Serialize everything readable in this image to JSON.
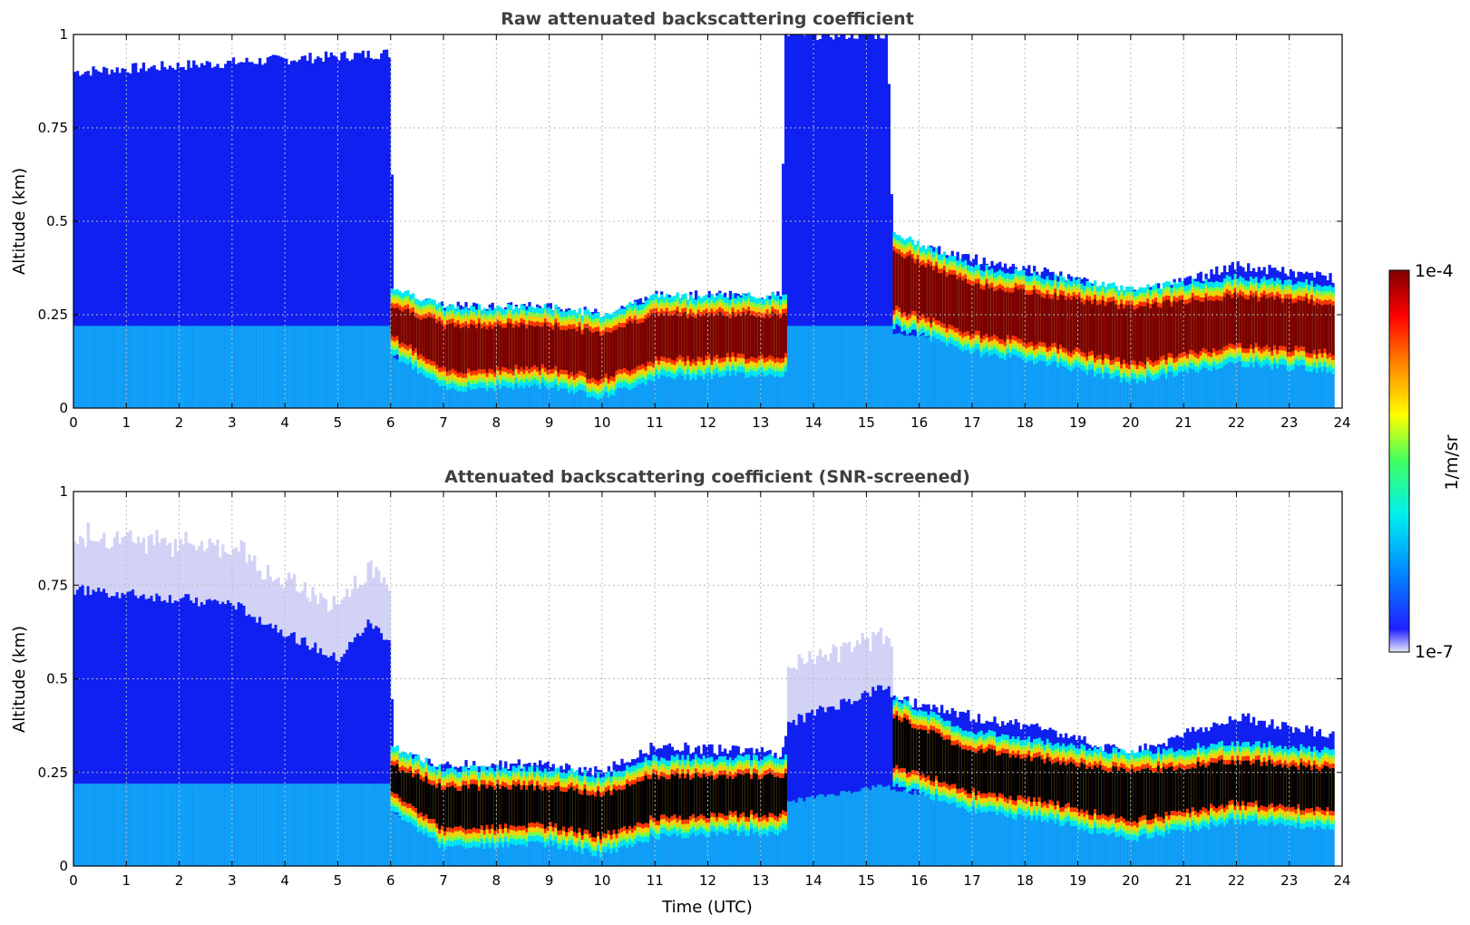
{
  "chart_data": [
    {
      "type": "heatmap",
      "title": "Raw attenuated backscattering coefficient",
      "xlabel": "",
      "ylabel": "Altitude (km)",
      "xlim": [
        0,
        24
      ],
      "ylim": [
        0,
        1
      ],
      "x_ticks": [
        "0",
        "1",
        "2",
        "3",
        "4",
        "5",
        "6",
        "7",
        "8",
        "9",
        "10",
        "11",
        "12",
        "13",
        "14",
        "15",
        "16",
        "17",
        "18",
        "19",
        "20",
        "21",
        "22",
        "23",
        "24"
      ],
      "y_ticks": [
        "0",
        "0.25",
        "0.5",
        "0.75",
        "1"
      ],
      "y_tick_values": [
        0,
        0.25,
        0.5,
        0.75,
        1
      ],
      "grid": true,
      "screened": false,
      "layer_top_km": [
        {
          "t": 0,
          "v": 0.9
        },
        {
          "t": 6,
          "v": 0.95
        },
        {
          "t": 6.05,
          "v": 0.3
        },
        {
          "t": 7,
          "v": 0.27
        },
        {
          "t": 9,
          "v": 0.27
        },
        {
          "t": 10,
          "v": 0.25
        },
        {
          "t": 11,
          "v": 0.3
        },
        {
          "t": 13.4,
          "v": 0.3
        },
        {
          "t": 13.45,
          "v": 1.0
        },
        {
          "t": 15.4,
          "v": 1.0
        },
        {
          "t": 15.5,
          "v": 0.45
        },
        {
          "t": 17,
          "v": 0.4
        },
        {
          "t": 18.5,
          "v": 0.36
        },
        {
          "t": 20,
          "v": 0.3
        },
        {
          "t": 22,
          "v": 0.38
        },
        {
          "t": 23.8,
          "v": 0.35
        }
      ],
      "core_km": [
        {
          "t": 6.0,
          "top": 0.28,
          "bottom": 0.2
        },
        {
          "t": 7,
          "top": 0.22,
          "bottom": 0.1
        },
        {
          "t": 9,
          "top": 0.22,
          "bottom": 0.11
        },
        {
          "t": 10,
          "top": 0.2,
          "bottom": 0.08
        },
        {
          "t": 11,
          "top": 0.25,
          "bottom": 0.13
        },
        {
          "t": 12.5,
          "top": 0.25,
          "bottom": 0.14
        },
        {
          "t": 13.5,
          "top": 0.25,
          "bottom": 0.14
        },
        {
          "t": 15.5,
          "top": 0.42,
          "bottom": 0.27
        },
        {
          "t": 17,
          "top": 0.33,
          "bottom": 0.2
        },
        {
          "t": 18.5,
          "top": 0.3,
          "bottom": 0.17
        },
        {
          "t": 20,
          "top": 0.27,
          "bottom": 0.12
        },
        {
          "t": 22,
          "top": 0.3,
          "bottom": 0.17
        },
        {
          "t": 23.8,
          "top": 0.28,
          "bottom": 0.15
        }
      ]
    },
    {
      "type": "heatmap",
      "title": "Attenuated backscattering coefficient (SNR-screened)",
      "xlabel": "Time (UTC)",
      "ylabel": "Altitude (km)",
      "xlim": [
        0,
        24
      ],
      "ylim": [
        0,
        1
      ],
      "x_ticks": [
        "0",
        "1",
        "2",
        "3",
        "4",
        "5",
        "6",
        "7",
        "8",
        "9",
        "10",
        "11",
        "12",
        "13",
        "14",
        "15",
        "16",
        "17",
        "18",
        "19",
        "20",
        "21",
        "22",
        "23",
        "24"
      ],
      "y_ticks": [
        "0",
        "0.25",
        "0.5",
        "0.75",
        "1"
      ],
      "y_tick_values": [
        0,
        0.25,
        0.5,
        0.75,
        1
      ],
      "grid": true,
      "screened": true,
      "layer_top_km": [
        {
          "t": 0,
          "v": 0.74
        },
        {
          "t": 3,
          "v": 0.7
        },
        {
          "t": 5,
          "v": 0.55
        },
        {
          "t": 5.6,
          "v": 0.65
        },
        {
          "t": 6.0,
          "v": 0.6
        },
        {
          "t": 6.05,
          "v": 0.3
        },
        {
          "t": 7,
          "v": 0.27
        },
        {
          "t": 9,
          "v": 0.27
        },
        {
          "t": 10,
          "v": 0.25
        },
        {
          "t": 11,
          "v": 0.32
        },
        {
          "t": 13.4,
          "v": 0.3
        },
        {
          "t": 13.5,
          "v": 0.38
        },
        {
          "t": 15.4,
          "v": 0.48
        },
        {
          "t": 15.5,
          "v": 0.45
        },
        {
          "t": 17,
          "v": 0.4
        },
        {
          "t": 18.5,
          "v": 0.36
        },
        {
          "t": 20,
          "v": 0.3
        },
        {
          "t": 22,
          "v": 0.4
        },
        {
          "t": 23.8,
          "v": 0.35
        }
      ],
      "core_km": [
        {
          "t": 6.0,
          "top": 0.27,
          "bottom": 0.2
        },
        {
          "t": 7,
          "top": 0.21,
          "bottom": 0.1
        },
        {
          "t": 9,
          "top": 0.21,
          "bottom": 0.11
        },
        {
          "t": 10,
          "top": 0.19,
          "bottom": 0.08
        },
        {
          "t": 11,
          "top": 0.24,
          "bottom": 0.13
        },
        {
          "t": 12.5,
          "top": 0.24,
          "bottom": 0.14
        },
        {
          "t": 13.5,
          "top": 0.24,
          "bottom": 0.14
        },
        {
          "t": 15.5,
          "top": 0.4,
          "bottom": 0.27
        },
        {
          "t": 17,
          "top": 0.31,
          "bottom": 0.2
        },
        {
          "t": 18.5,
          "top": 0.28,
          "bottom": 0.17
        },
        {
          "t": 20,
          "top": 0.25,
          "bottom": 0.12
        },
        {
          "t": 22,
          "top": 0.28,
          "bottom": 0.17
        },
        {
          "t": 23.8,
          "top": 0.26,
          "bottom": 0.15
        }
      ]
    }
  ],
  "colorbar": {
    "label": "1/m/sr",
    "max_label": "1e-4",
    "min_label": "1e-7",
    "colors": [
      "#e8e8f8",
      "#0000ff",
      "#00a0ff",
      "#00f0f0",
      "#20ff80",
      "#ffff00",
      "#ff8000",
      "#ff0000",
      "#800000"
    ]
  }
}
